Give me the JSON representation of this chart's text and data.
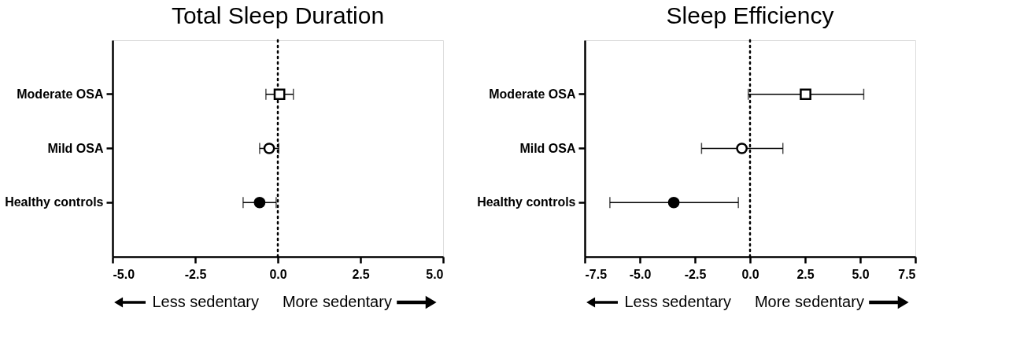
{
  "chart_data": [
    {
      "type": "scatter",
      "orientation": "horizontal",
      "title": "Total Sleep Duration",
      "categories": [
        "Moderate OSA",
        "Mild OSA",
        "Healthy controls"
      ],
      "series": [
        {
          "color": "#ffffff",
          "marker": "square",
          "values": [
            0.05,
            null,
            null
          ],
          "errors": [
            [
              -0.36,
              0.47
            ],
            null,
            null
          ]
        },
        {
          "color": "#ffffff",
          "marker": "circle",
          "values": [
            null,
            -0.26,
            null
          ],
          "errors": [
            null,
            [
              -0.55,
              0.03
            ],
            null
          ]
        },
        {
          "color": "#000000",
          "marker": "circle",
          "values": [
            null,
            null,
            -0.55
          ],
          "errors": [
            null,
            null,
            [
              -1.05,
              -0.05
            ]
          ]
        }
      ],
      "xlim": [
        -5,
        5
      ],
      "xticks": [
        {
          "value": -5,
          "label": "-5.0"
        },
        {
          "value": -2.5,
          "label": "-2.5"
        },
        {
          "value": 0,
          "label": "0.0"
        },
        {
          "value": 2.5,
          "label": "2.5"
        },
        {
          "value": 5,
          "label": "5.0"
        }
      ],
      "ref_lines": [
        {
          "axis": "x",
          "value": 0,
          "line_style": "dotted",
          "color": "#000000"
        }
      ],
      "annotations": [
        "Less sedentary",
        "More sedentary"
      ]
    },
    {
      "type": "scatter",
      "orientation": "horizontal",
      "title": "Sleep Efficiency",
      "categories": [
        "Moderate OSA",
        "Mild OSA",
        "Healthy controls"
      ],
      "series": [
        {
          "color": "#ffffff",
          "marker": "square",
          "values": [
            2.52,
            null,
            null
          ],
          "errors": [
            [
              -0.08,
              5.16
            ],
            null,
            null
          ]
        },
        {
          "color": "#ffffff",
          "marker": "circle",
          "values": [
            null,
            -0.37,
            null
          ],
          "errors": [
            null,
            [
              -2.2,
              1.49
            ],
            null
          ]
        },
        {
          "color": "#000000",
          "marker": "circle",
          "values": [
            null,
            null,
            -3.46
          ],
          "errors": [
            null,
            null,
            [
              -6.36,
              -0.53
            ]
          ]
        }
      ],
      "xlim": [
        -7.5,
        7.5
      ],
      "xticks": [
        {
          "value": -7.5,
          "label": "-7.5"
        },
        {
          "value": -5,
          "label": "-5.0"
        },
        {
          "value": -2.5,
          "label": "-2.5"
        },
        {
          "value": 0,
          "label": "0.0"
        },
        {
          "value": 2.5,
          "label": "2.5"
        },
        {
          "value": 5,
          "label": "5.0"
        },
        {
          "value": 7.5,
          "label": "7.5"
        }
      ],
      "ref_lines": [
        {
          "axis": "x",
          "value": 0,
          "line_style": "dotted",
          "color": "#000000"
        }
      ],
      "annotations": [
        "Less sedentary",
        "More sedentary"
      ]
    }
  ]
}
